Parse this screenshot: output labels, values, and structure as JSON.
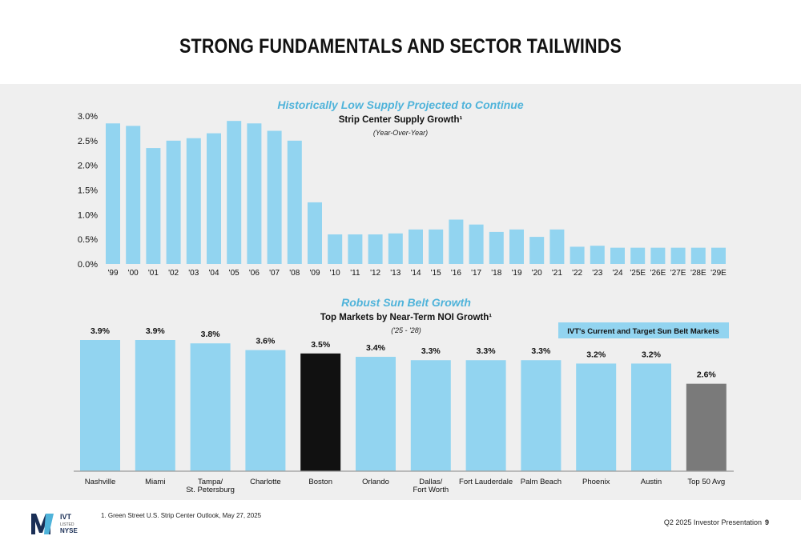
{
  "page": {
    "title": "STRONG FUNDAMENTALS AND SECTOR TAILWINDS",
    "footnote": "1.  Green Street U.S. Strip Center Outlook, May 27, 2025",
    "presentation_label": "Q2 2025 Investor Presentation",
    "page_number": "9",
    "logo": {
      "text_top": "IVT",
      "text_mid": "LISTED",
      "text_bottom": "NYSE"
    }
  },
  "colors": {
    "bar": "#92d4f0",
    "highlight": "#111111",
    "benchmark": "#7a7a7a",
    "accent_title": "#4fb3da",
    "panel": "#efefef"
  },
  "chart_data": [
    {
      "type": "bar",
      "heading": "Historically Low Supply Projected to Continue",
      "title": "Strip Center Supply Growth¹",
      "subtitle": "(Year-Over-Year)",
      "categories": [
        "'99",
        "'00",
        "'01",
        "'02",
        "'03",
        "'04",
        "'05",
        "'06",
        "'07",
        "'08",
        "'09",
        "'10",
        "'11",
        "'12",
        "'13",
        "'14",
        "'15",
        "'16",
        "'17",
        "'18",
        "'19",
        "'20",
        "'21",
        "'22",
        "'23",
        "'24",
        "'25E",
        "'26E",
        "'27E",
        "'28E",
        "'29E"
      ],
      "values": [
        2.85,
        2.8,
        2.35,
        2.5,
        2.55,
        2.65,
        2.9,
        2.85,
        2.7,
        2.5,
        1.25,
        0.6,
        0.6,
        0.6,
        0.62,
        0.7,
        0.7,
        0.9,
        0.8,
        0.65,
        0.7,
        0.55,
        0.7,
        0.35,
        0.37,
        0.33,
        0.33,
        0.33,
        0.33,
        0.33,
        0.33
      ],
      "y_ticks": [
        "0.0%",
        "0.5%",
        "1.0%",
        "1.5%",
        "2.0%",
        "2.5%",
        "3.0%"
      ],
      "ylim": [
        0,
        3.0
      ],
      "grid": false
    },
    {
      "type": "bar",
      "heading": "Robust Sun Belt Growth",
      "title": "Top Markets by Near-Term NOI Growth¹",
      "subtitle": "('25 - '28)",
      "legend": "IVT's Current and Target Sun Belt Markets",
      "categories": [
        [
          "Nashville"
        ],
        [
          "Miami"
        ],
        [
          "Tampa/",
          "St. Petersburg"
        ],
        [
          "Charlotte"
        ],
        [
          "Boston"
        ],
        [
          "Orlando"
        ],
        [
          "Dallas/",
          "Fort Worth"
        ],
        [
          "Fort Lauderdale"
        ],
        [
          "Palm Beach"
        ],
        [
          "Phoenix"
        ],
        [
          "Austin"
        ],
        [
          "Top 50 Avg"
        ]
      ],
      "values": [
        3.9,
        3.9,
        3.8,
        3.6,
        3.5,
        3.4,
        3.3,
        3.3,
        3.3,
        3.2,
        3.2,
        2.6
      ],
      "value_labels": [
        "3.9%",
        "3.9%",
        "3.8%",
        "3.6%",
        "3.5%",
        "3.4%",
        "3.3%",
        "3.3%",
        "3.3%",
        "3.2%",
        "3.2%",
        "2.6%"
      ],
      "bar_kinds": [
        "sunbelt",
        "sunbelt",
        "sunbelt",
        "sunbelt",
        "other",
        "sunbelt",
        "sunbelt",
        "sunbelt",
        "sunbelt",
        "sunbelt",
        "sunbelt",
        "benchmark"
      ],
      "ylim": [
        0,
        3.9
      ],
      "grid": false
    }
  ]
}
